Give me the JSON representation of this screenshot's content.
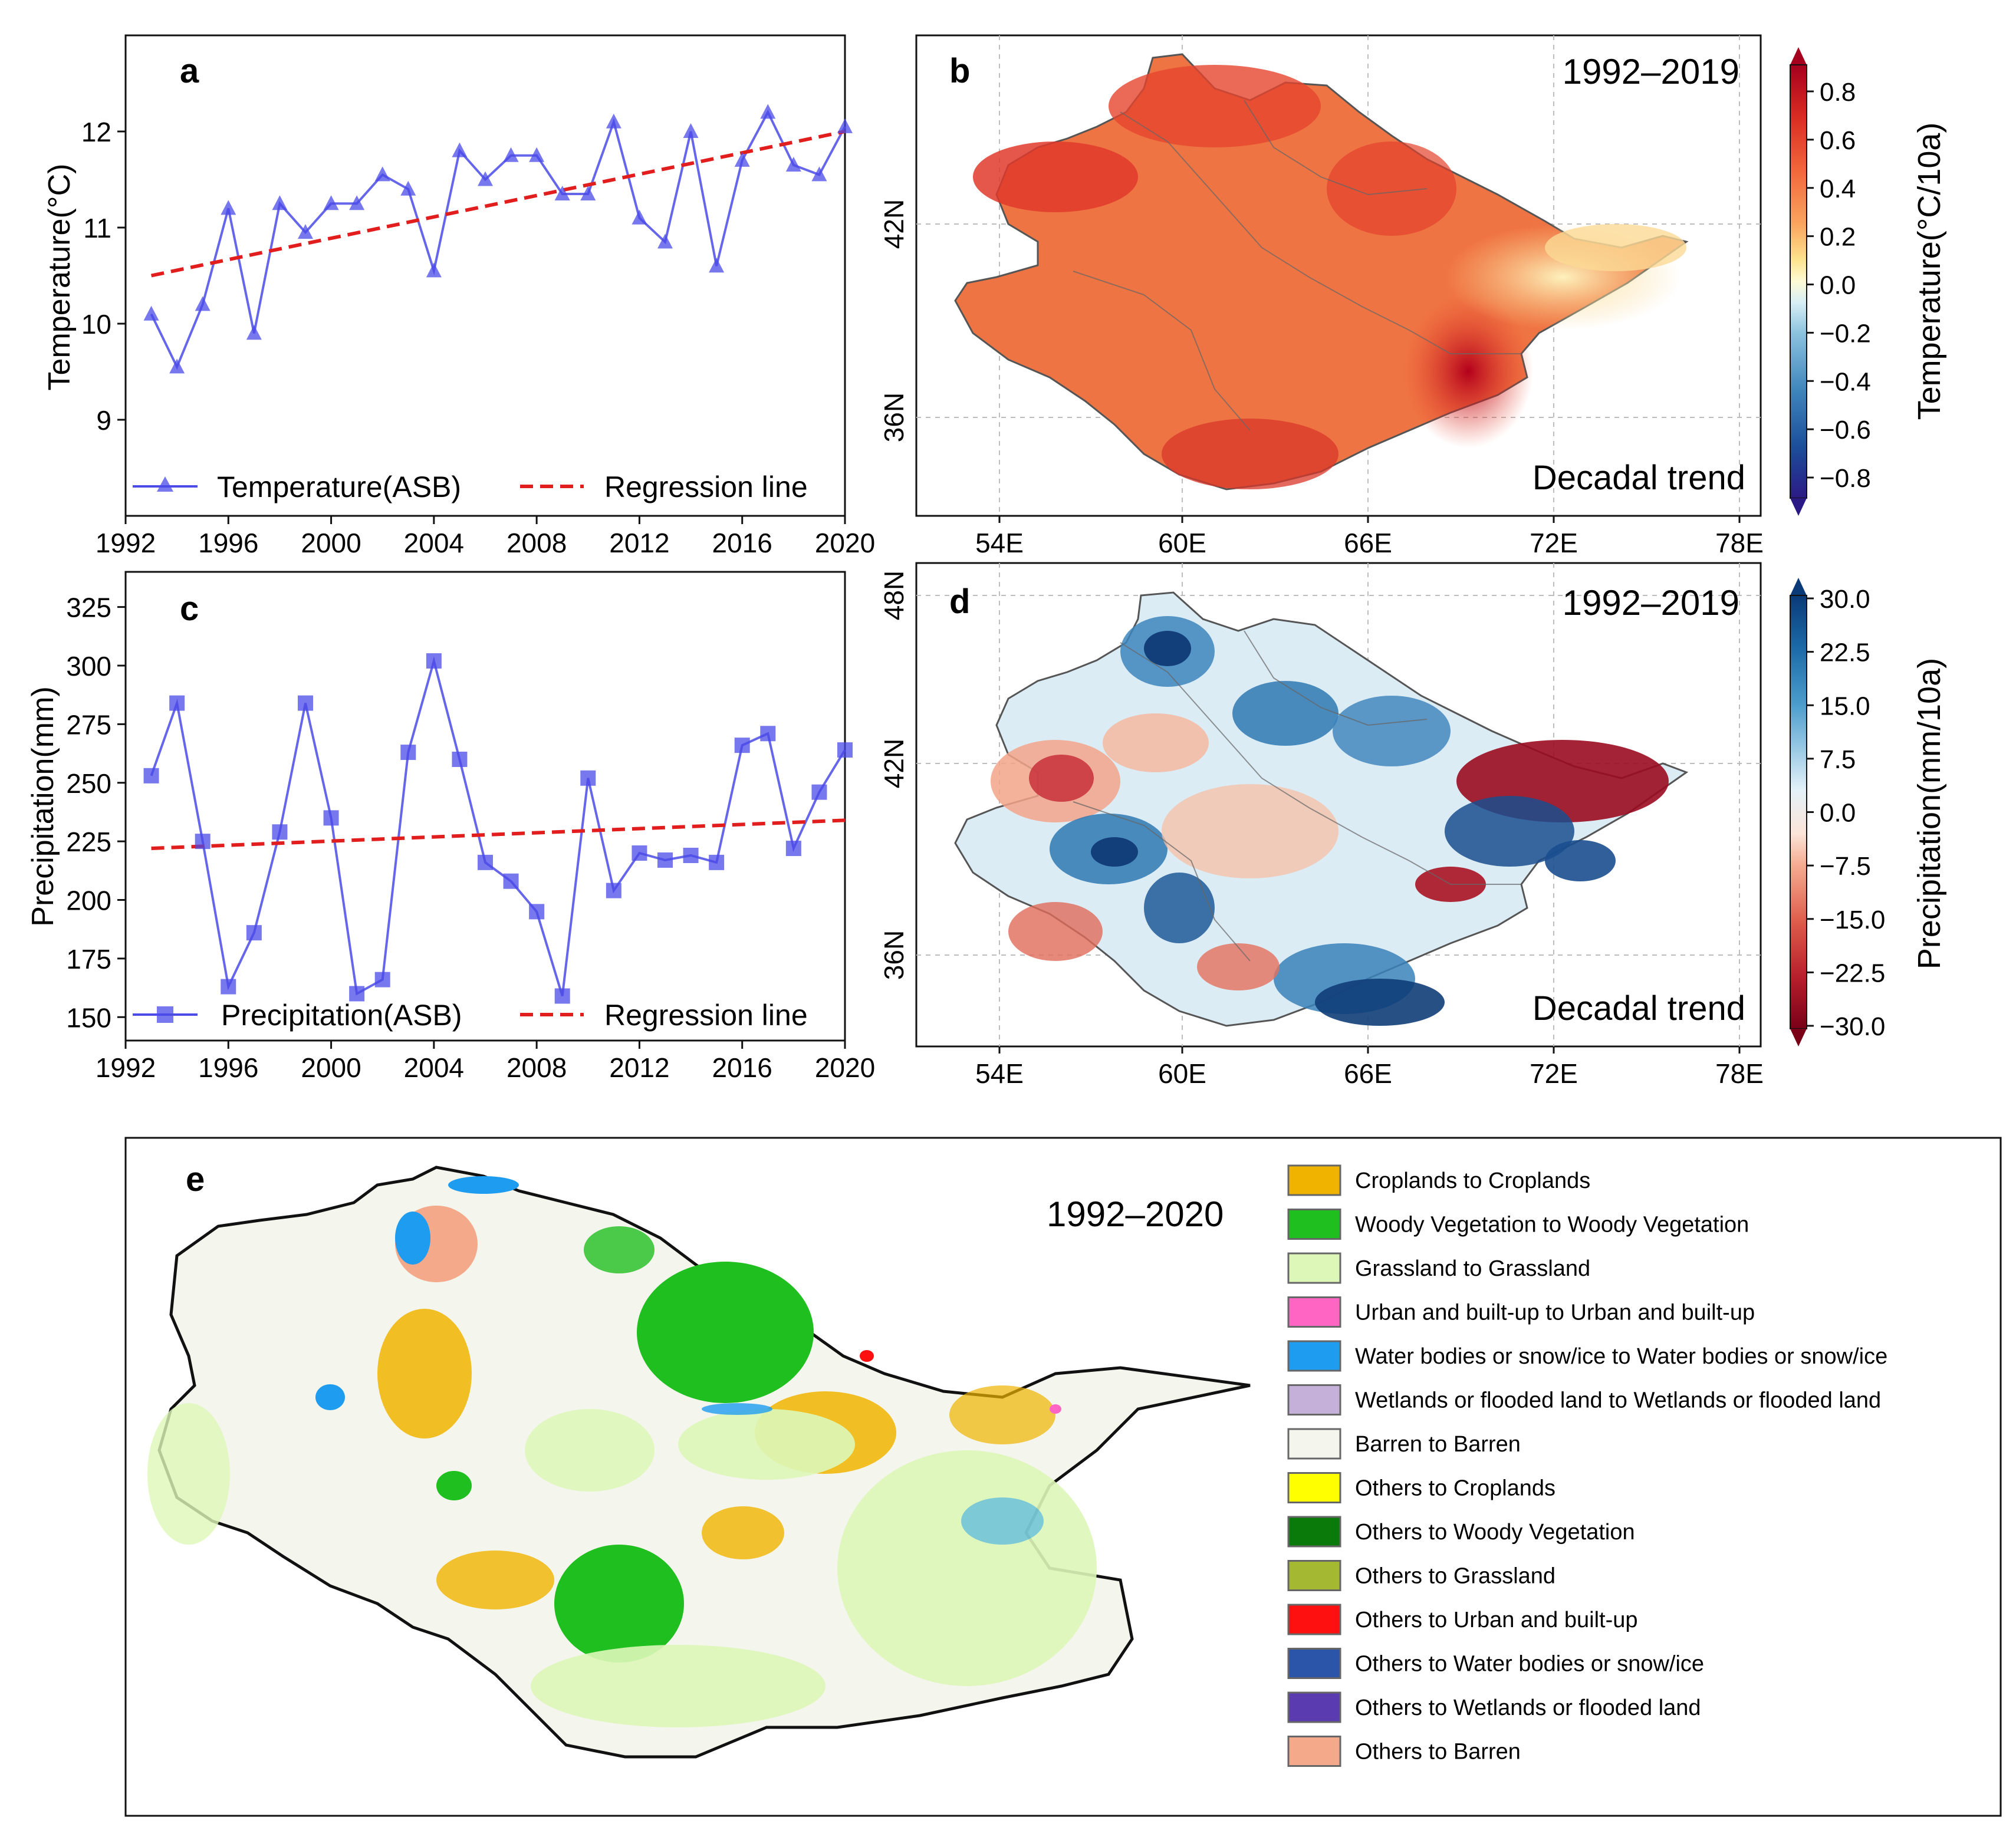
{
  "colors": {
    "temp_series": "#4b4be8",
    "regression": "#e11d1d",
    "axis": "#111111",
    "grid": "#c8c8c8"
  },
  "chart_data": [
    {
      "panel": "a",
      "type": "line",
      "ylabel": "Temperature(°C)",
      "xlim": [
        1992,
        2020
      ],
      "ylim": [
        8,
        13
      ],
      "xticks": [
        "1992",
        "1996",
        "2000",
        "2004",
        "2008",
        "2012",
        "2016",
        "2020"
      ],
      "yticks": [
        "9",
        "10",
        "11",
        "12"
      ],
      "legend": "bottom",
      "x": [
        1993,
        1994,
        1995,
        1996,
        1997,
        1998,
        1999,
        2000,
        2001,
        2002,
        2003,
        2004,
        2005,
        2006,
        2007,
        2008,
        2009,
        2010,
        2011,
        2012,
        2013,
        2014,
        2015,
        2016,
        2017,
        2018,
        2019,
        2020
      ],
      "series": [
        {
          "name": "Temperature(ASB)",
          "marker": "triangle",
          "values": [
            10.1,
            9.55,
            10.2,
            11.2,
            9.9,
            11.25,
            10.95,
            11.25,
            11.25,
            11.55,
            11.4,
            10.55,
            11.8,
            11.5,
            11.75,
            11.75,
            11.35,
            11.35,
            12.1,
            11.1,
            10.85,
            12.0,
            10.6,
            11.7,
            12.2,
            11.65,
            11.55,
            12.05
          ]
        },
        {
          "name": "Regression line",
          "style": "dashed",
          "values": [
            10.5,
            12.0
          ],
          "x": [
            1993,
            2020
          ]
        }
      ]
    },
    {
      "panel": "c",
      "type": "line",
      "ylabel": "Precipitation(mm)",
      "xlim": [
        1992,
        2020
      ],
      "ylim": [
        140,
        340
      ],
      "xticks": [
        "1992",
        "1996",
        "2000",
        "2004",
        "2008",
        "2012",
        "2016",
        "2020"
      ],
      "yticks": [
        "150",
        "175",
        "200",
        "225",
        "250",
        "275",
        "300",
        "325"
      ],
      "legend": "bottom",
      "x": [
        1993,
        1994,
        1995,
        1996,
        1997,
        1998,
        1999,
        2000,
        2001,
        2002,
        2003,
        2004,
        2005,
        2006,
        2007,
        2008,
        2009,
        2010,
        2011,
        2012,
        2013,
        2014,
        2015,
        2016,
        2017,
        2018,
        2019,
        2020
      ],
      "series": [
        {
          "name": "Precipitation(ASB)",
          "marker": "square",
          "values": [
            253,
            284,
            225,
            163,
            186,
            229,
            284,
            235,
            160,
            166,
            263,
            302,
            260,
            216,
            208,
            195,
            159,
            252,
            204,
            220,
            217,
            219,
            216,
            266,
            271,
            222,
            246,
            264
          ]
        },
        {
          "name": "Regression line",
          "style": "dashed",
          "values": [
            222,
            234
          ],
          "x": [
            1993,
            2020
          ]
        }
      ]
    },
    {
      "panel": "b",
      "type": "heatmap",
      "period": "1992–2019",
      "caption": "Decadal trend",
      "xticks": [
        "54E",
        "60E",
        "66E",
        "72E",
        "78E"
      ],
      "yticks": [
        "42N",
        "36N"
      ],
      "colorbar_label": "Temperature(°C/10a)",
      "colorbar_ticks": [
        "0.8",
        "0.6",
        "0.4",
        "0.2",
        "0.0",
        "−0.2",
        "−0.4",
        "−0.6",
        "−0.8"
      ]
    },
    {
      "panel": "d",
      "type": "heatmap",
      "period": "1992–2019",
      "caption": "Decadal trend",
      "xticks": [
        "54E",
        "60E",
        "66E",
        "72E",
        "78E"
      ],
      "yticks": [
        "48N",
        "42N",
        "36N"
      ],
      "colorbar_label": "Precipitation(mm/10a)",
      "colorbar_ticks": [
        "30.0",
        "22.5",
        "15.0",
        "7.5",
        "0.0",
        "−7.5",
        "−15.0",
        "−22.5",
        "−30.0"
      ]
    },
    {
      "panel": "e",
      "type": "heatmap",
      "period": "1992–2020",
      "legend": [
        {
          "label": "Croplands  to  Croplands",
          "color": "#f0b400"
        },
        {
          "label": "Woody Vegetation  to  Woody Vegetation",
          "color": "#1fbf1f"
        },
        {
          "label": "Grassland  to  Grassland",
          "color": "#ddf7b8"
        },
        {
          "label": "Urban and built-up  to  Urban and built-up",
          "color": "#ff66c4"
        },
        {
          "label": "Water bodies or snow/ice  to  Water bodies or snow/ice",
          "color": "#1e9cf0"
        },
        {
          "label": "Wetlands or flooded land  to  Wetlands or flooded land",
          "color": "#c4b0d8"
        },
        {
          "label": "Barren  to  Barren",
          "color": "#f4f5ec"
        },
        {
          "label": "Others  to  Croplands",
          "color": "#ffff00"
        },
        {
          "label": "Others  to  Woody Vegetation",
          "color": "#0a7a0a"
        },
        {
          "label": "Others  to  Grassland",
          "color": "#a4b832"
        },
        {
          "label": "Others  to  Urban and built-up",
          "color": "#ff1010"
        },
        {
          "label": "Others  to  Water bodies or snow/ice",
          "color": "#2a55a8"
        },
        {
          "label": "Others  to  Wetlands or flooded land",
          "color": "#5a3cb0"
        },
        {
          "label": "Others  to  Barren",
          "color": "#f4a98a"
        }
      ]
    }
  ],
  "labels": {
    "a": "a",
    "b": "b",
    "c": "c",
    "d": "d",
    "e": "e"
  }
}
